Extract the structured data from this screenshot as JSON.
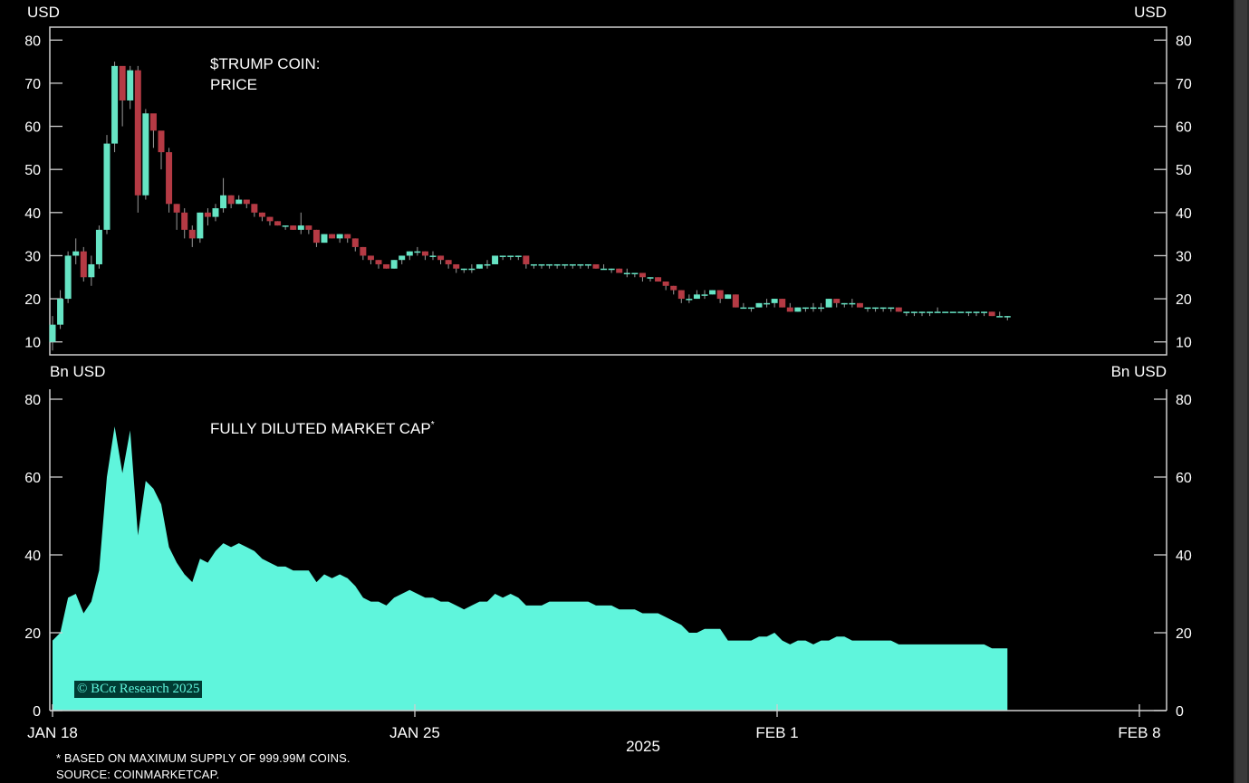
{
  "colors": {
    "background": "#000000",
    "axis": "#cfcfcf",
    "up": "#66e4c4",
    "down": "#b53a44",
    "area": "#5ff5dc"
  },
  "chart_data": [
    {
      "type": "candlestick",
      "title": "$TRUMP COIN:",
      "subtitle": "PRICE",
      "unit_left": "USD",
      "unit_right": "USD",
      "ylim": [
        7,
        83
      ],
      "yticks": [
        10,
        20,
        30,
        40,
        50,
        60,
        70,
        80
      ],
      "x_range": [
        0,
        21
      ],
      "grid": false,
      "candles": [
        [
          0.0,
          10,
          14,
          16,
          8
        ],
        [
          0.15,
          14,
          20,
          22,
          13
        ],
        [
          0.3,
          20,
          30,
          31,
          19
        ],
        [
          0.45,
          30,
          31,
          34,
          28
        ],
        [
          0.6,
          31,
          25,
          32,
          24
        ],
        [
          0.75,
          25,
          28,
          30,
          23
        ],
        [
          0.9,
          28,
          36,
          37,
          27
        ],
        [
          1.05,
          36,
          56,
          58,
          35
        ],
        [
          1.2,
          56,
          74,
          75,
          54
        ],
        [
          1.35,
          74,
          66,
          73,
          60
        ],
        [
          1.5,
          66,
          73,
          74,
          64
        ],
        [
          1.65,
          73,
          44,
          74,
          40
        ],
        [
          1.8,
          44,
          63,
          64,
          43
        ],
        [
          1.95,
          63,
          59,
          62,
          55
        ],
        [
          2.1,
          59,
          54,
          58,
          50
        ],
        [
          2.25,
          54,
          42,
          55,
          40
        ],
        [
          2.4,
          42,
          40,
          42,
          36
        ],
        [
          2.55,
          40,
          36,
          41,
          34
        ],
        [
          2.7,
          36,
          34,
          37,
          32
        ],
        [
          2.85,
          34,
          40,
          40,
          33
        ],
        [
          3.0,
          40,
          39,
          41,
          37
        ],
        [
          3.15,
          39,
          41,
          42,
          38
        ],
        [
          3.3,
          41,
          44,
          48,
          40
        ],
        [
          3.45,
          44,
          42,
          44,
          41
        ],
        [
          3.6,
          42,
          43,
          44,
          42
        ],
        [
          3.75,
          43,
          42,
          43,
          41
        ],
        [
          3.9,
          42,
          40,
          42,
          39
        ],
        [
          4.05,
          40,
          39,
          40,
          38
        ],
        [
          4.2,
          39,
          38,
          39,
          37
        ],
        [
          4.35,
          38,
          37,
          38,
          37
        ],
        [
          4.5,
          37,
          37,
          37,
          36
        ],
        [
          4.65,
          37,
          36,
          37,
          36
        ],
        [
          4.8,
          36,
          37,
          40,
          35
        ],
        [
          4.95,
          37,
          36,
          37,
          35
        ],
        [
          5.1,
          36,
          33,
          36,
          32
        ],
        [
          5.25,
          33,
          35,
          35,
          33
        ],
        [
          5.4,
          35,
          34,
          35,
          34
        ],
        [
          5.55,
          34,
          35,
          35,
          33
        ],
        [
          5.7,
          35,
          34,
          35,
          33
        ],
        [
          5.85,
          34,
          32,
          34,
          31
        ],
        [
          6.0,
          32,
          30,
          32,
          29
        ],
        [
          6.15,
          30,
          29,
          30,
          28
        ],
        [
          6.3,
          29,
          28,
          29,
          27
        ],
        [
          6.45,
          28,
          27,
          28,
          27
        ],
        [
          6.6,
          27,
          29,
          29,
          27
        ],
        [
          6.75,
          29,
          30,
          30,
          28
        ],
        [
          6.9,
          30,
          31,
          31,
          29
        ],
        [
          7.05,
          31,
          31,
          32,
          30
        ],
        [
          7.2,
          31,
          30,
          31,
          29
        ],
        [
          7.35,
          30,
          30,
          31,
          29
        ],
        [
          7.5,
          30,
          29,
          30,
          28
        ],
        [
          7.65,
          29,
          28,
          29,
          27
        ],
        [
          7.8,
          28,
          27,
          28,
          26
        ],
        [
          7.95,
          27,
          27,
          27,
          26
        ],
        [
          8.1,
          27,
          27,
          28,
          26
        ],
        [
          8.25,
          27,
          28,
          28,
          27
        ],
        [
          8.4,
          28,
          28,
          29,
          27
        ],
        [
          8.55,
          28,
          30,
          30,
          28
        ],
        [
          8.7,
          30,
          30,
          30,
          29
        ],
        [
          8.85,
          30,
          30,
          30,
          29
        ],
        [
          9.0,
          30,
          30,
          30,
          29
        ],
        [
          9.15,
          30,
          28,
          30,
          27
        ],
        [
          9.3,
          28,
          28,
          28,
          27
        ],
        [
          9.45,
          28,
          28,
          28,
          27
        ],
        [
          9.6,
          28,
          28,
          28,
          27
        ],
        [
          9.75,
          28,
          28,
          28,
          27
        ],
        [
          9.9,
          28,
          28,
          28,
          27
        ],
        [
          10.05,
          28,
          28,
          28,
          27
        ],
        [
          10.2,
          28,
          28,
          28,
          27
        ],
        [
          10.35,
          28,
          28,
          28,
          27
        ],
        [
          10.5,
          28,
          27,
          28,
          27
        ],
        [
          10.65,
          27,
          27,
          28,
          27
        ],
        [
          10.8,
          27,
          27,
          27,
          26
        ],
        [
          10.95,
          27,
          26,
          27,
          26
        ],
        [
          11.1,
          26,
          26,
          27,
          25
        ],
        [
          11.25,
          26,
          26,
          26,
          25
        ],
        [
          11.4,
          26,
          25,
          26,
          24
        ],
        [
          11.55,
          25,
          25,
          25,
          24
        ],
        [
          11.7,
          25,
          24,
          25,
          24
        ],
        [
          11.85,
          24,
          23,
          24,
          22
        ],
        [
          12.0,
          23,
          22,
          23,
          21
        ],
        [
          12.15,
          22,
          20,
          22,
          19
        ],
        [
          12.3,
          20,
          20,
          21,
          19
        ],
        [
          12.45,
          20,
          21,
          22,
          20
        ],
        [
          12.6,
          21,
          21,
          22,
          20
        ],
        [
          12.75,
          21,
          22,
          22,
          21
        ],
        [
          12.9,
          22,
          20,
          22,
          19
        ],
        [
          13.05,
          20,
          21,
          21,
          20
        ],
        [
          13.2,
          21,
          18,
          21,
          18
        ],
        [
          13.35,
          18,
          18,
          19,
          18
        ],
        [
          13.5,
          18,
          18,
          18,
          17
        ],
        [
          13.65,
          18,
          19,
          19,
          18
        ],
        [
          13.8,
          19,
          19,
          20,
          18
        ],
        [
          13.95,
          19,
          20,
          20,
          18
        ],
        [
          14.1,
          20,
          18,
          20,
          18
        ],
        [
          14.25,
          18,
          17,
          19,
          17
        ],
        [
          14.4,
          17,
          18,
          18,
          17
        ],
        [
          14.55,
          18,
          18,
          18,
          17
        ],
        [
          14.7,
          18,
          18,
          19,
          17
        ],
        [
          14.85,
          18,
          18,
          19,
          17
        ],
        [
          15.0,
          18,
          20,
          20,
          18
        ],
        [
          15.15,
          20,
          19,
          20,
          18
        ],
        [
          15.3,
          19,
          19,
          19,
          18
        ],
        [
          15.45,
          19,
          19,
          20,
          18
        ],
        [
          15.6,
          19,
          18,
          19,
          18
        ],
        [
          15.75,
          18,
          18,
          18,
          17
        ],
        [
          15.9,
          18,
          18,
          18,
          17
        ],
        [
          16.05,
          18,
          18,
          18,
          17
        ],
        [
          16.2,
          18,
          18,
          18,
          17
        ],
        [
          16.35,
          18,
          17,
          18,
          17
        ],
        [
          16.5,
          17,
          17,
          17,
          16
        ],
        [
          16.65,
          17,
          17,
          17,
          16
        ],
        [
          16.8,
          17,
          17,
          17,
          16
        ],
        [
          16.95,
          17,
          17,
          17,
          16
        ],
        [
          17.1,
          17,
          17,
          18,
          17
        ],
        [
          17.25,
          17,
          17,
          17,
          17
        ],
        [
          17.4,
          17,
          17,
          17,
          17
        ],
        [
          17.55,
          17,
          17,
          17,
          17
        ],
        [
          17.7,
          17,
          17,
          17,
          16
        ],
        [
          17.85,
          17,
          17,
          17,
          16
        ],
        [
          18.0,
          17,
          17,
          17,
          16
        ],
        [
          18.15,
          17,
          16,
          17,
          16
        ],
        [
          18.3,
          16,
          16,
          17,
          16
        ],
        [
          18.45,
          16,
          16,
          16,
          15
        ]
      ]
    },
    {
      "type": "area",
      "title": "FULLY DILUTED MARKET CAP",
      "title_marker": "*",
      "unit_left": "Bn USD",
      "unit_right": "Bn USD",
      "ylim": [
        0,
        80
      ],
      "yticks": [
        0,
        20,
        40,
        60,
        80
      ],
      "x_range": [
        0,
        21
      ],
      "grid": false,
      "x": [
        0,
        0.15,
        0.3,
        0.45,
        0.6,
        0.75,
        0.9,
        1.05,
        1.2,
        1.35,
        1.5,
        1.65,
        1.8,
        1.95,
        2.1,
        2.25,
        2.4,
        2.55,
        2.7,
        2.85,
        3,
        3.15,
        3.3,
        3.45,
        3.6,
        3.75,
        3.9,
        4.05,
        4.2,
        4.35,
        4.5,
        4.65,
        4.8,
        4.95,
        5.1,
        5.25,
        5.4,
        5.55,
        5.7,
        5.85,
        6,
        6.15,
        6.3,
        6.45,
        6.6,
        6.75,
        6.9,
        7.05,
        7.2,
        7.35,
        7.5,
        7.65,
        7.8,
        7.95,
        8.1,
        8.25,
        8.4,
        8.55,
        8.7,
        8.85,
        9,
        9.15,
        9.3,
        9.45,
        9.6,
        9.75,
        9.9,
        10.05,
        10.2,
        10.35,
        10.5,
        10.65,
        10.8,
        10.95,
        11.1,
        11.25,
        11.4,
        11.55,
        11.7,
        11.85,
        12,
        12.15,
        12.3,
        12.45,
        12.6,
        12.75,
        12.9,
        13.05,
        13.2,
        13.35,
        13.5,
        13.65,
        13.8,
        13.95,
        14.1,
        14.25,
        14.4,
        14.55,
        14.7,
        14.85,
        15,
        15.15,
        15.3,
        15.45,
        15.6,
        15.75,
        15.9,
        16.05,
        16.2,
        16.35,
        16.5,
        16.65,
        16.8,
        16.95,
        17.1,
        17.25,
        17.4,
        17.55,
        17.7,
        17.85,
        18,
        18.15,
        18.3,
        18.45
      ],
      "values": [
        18,
        20,
        29,
        30,
        25,
        28,
        36,
        60,
        73,
        61,
        72,
        45,
        59,
        57,
        53,
        42,
        38,
        35,
        33,
        39,
        38,
        41,
        43,
        42,
        43,
        42,
        41,
        39,
        38,
        37,
        37,
        36,
        36,
        36,
        33,
        35,
        34,
        35,
        34,
        32,
        29,
        28,
        28,
        27,
        29,
        30,
        31,
        30,
        29,
        29,
        28,
        28,
        27,
        26,
        27,
        28,
        28,
        30,
        29,
        30,
        29,
        27,
        27,
        27,
        28,
        28,
        28,
        28,
        28,
        28,
        27,
        27,
        27,
        26,
        26,
        26,
        25,
        25,
        25,
        24,
        23,
        22,
        20,
        20,
        21,
        21,
        21,
        18,
        18,
        18,
        18,
        19,
        19,
        20,
        18,
        17,
        18,
        18,
        17,
        18,
        18,
        19,
        19,
        18,
        18,
        18,
        18,
        18,
        18,
        17,
        17,
        17,
        17,
        17,
        17,
        17,
        17,
        17,
        17,
        17,
        17,
        16,
        16,
        16
      ]
    }
  ],
  "x_axis": {
    "ticks": [
      {
        "x": 0,
        "label": "JAN 18"
      },
      {
        "x": 7,
        "label": "JAN 25"
      },
      {
        "x": 14,
        "label": "FEB 1"
      },
      {
        "x": 21,
        "label": "FEB 8"
      }
    ],
    "year_label": "2025"
  },
  "footnotes": {
    "note": "* BASED ON MAXIMUM SUPPLY OF 999.99M COINS.",
    "source": "SOURCE: COINMARKETCAP."
  },
  "watermark": "© BCα Research 2025"
}
